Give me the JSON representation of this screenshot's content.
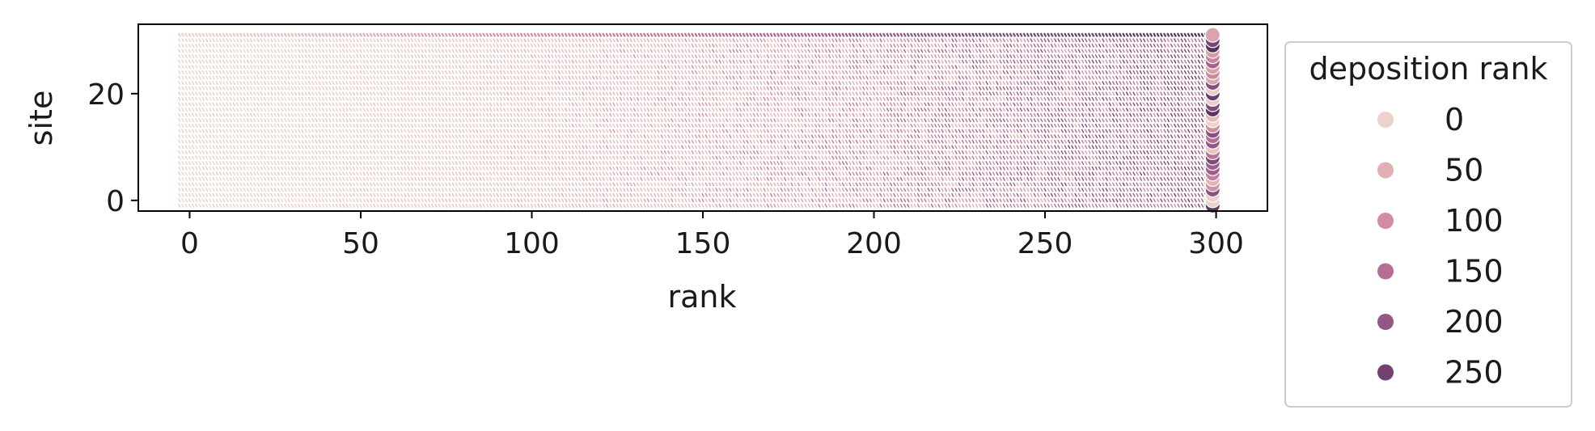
{
  "chart_data": {
    "type": "scatter",
    "title": "",
    "xlabel": "rank",
    "ylabel": "site",
    "xlim": [
      -15,
      315
    ],
    "ylim": [
      -2,
      33
    ],
    "x_ticks": [
      0,
      50,
      100,
      150,
      200,
      250,
      300
    ],
    "y_ticks": [
      0,
      20
    ],
    "grid": false,
    "legend": {
      "title": "deposition rank",
      "placement": "outside-right",
      "entries": [
        {
          "label": "0",
          "value": 0
        },
        {
          "label": "50",
          "value": 50
        },
        {
          "label": "100",
          "value": 100
        },
        {
          "label": "150",
          "value": 150
        },
        {
          "label": "200",
          "value": 200
        },
        {
          "label": "250",
          "value": 250
        }
      ]
    },
    "hue": {
      "variable": "deposition rank",
      "range": [
        0,
        299
      ],
      "colors": [
        "#ecd3ca",
        "#dfa8ae",
        "#c87f9a",
        "#a3608d",
        "#7b4678",
        "#4f2f59"
      ]
    },
    "series_description": {
      "x": {
        "min": -3,
        "max": 299,
        "count": 302
      },
      "y": {
        "min": -1,
        "max": 31,
        "count": 33
      },
      "final_column_x": 299
    }
  }
}
